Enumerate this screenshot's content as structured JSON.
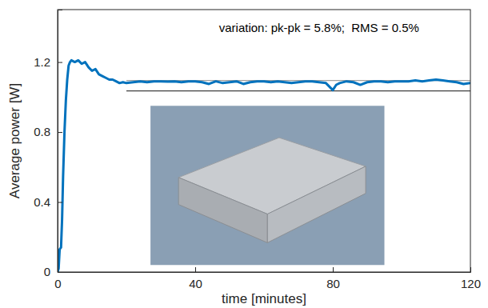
{
  "chart_data": {
    "type": "line",
    "x_label": "time [minutes]",
    "y_label": "Average power [W]",
    "annotation": "variation: pk-pk = 5.8%;  RMS = 0.5%",
    "xlim": [
      0,
      120
    ],
    "xticks": [
      0,
      40,
      80,
      120
    ],
    "ylim": [
      0,
      1.5
    ],
    "yticks": [
      0,
      0.4,
      0.8,
      1.2
    ],
    "grid": false,
    "series": [
      {
        "color": "#0072bd",
        "x": [
          0,
          0.3,
          0.6,
          1.0,
          1.3,
          1.6,
          2.0,
          2.4,
          2.8,
          3.2,
          3.6,
          4,
          5,
          6,
          7,
          8,
          9,
          10,
          11,
          12,
          13,
          14,
          15,
          16,
          17,
          18,
          19,
          20,
          22,
          24,
          26,
          28,
          30,
          32,
          34,
          36,
          38,
          40,
          42,
          44,
          46,
          48,
          50,
          52,
          54,
          56,
          58,
          60,
          62,
          64,
          66,
          68,
          70,
          72,
          74,
          76,
          78,
          80,
          81,
          82,
          84,
          86,
          88,
          90,
          92,
          94,
          96,
          98,
          100,
          102,
          104,
          106,
          108,
          110,
          112,
          114,
          116,
          118,
          120
        ],
        "values": [
          0,
          0.02,
          0.13,
          0.14,
          0.3,
          0.55,
          0.8,
          0.98,
          1.1,
          1.18,
          1.2,
          1.21,
          1.2,
          1.21,
          1.19,
          1.2,
          1.17,
          1.15,
          1.16,
          1.13,
          1.12,
          1.11,
          1.1,
          1.1,
          1.09,
          1.08,
          1.085,
          1.08,
          1.085,
          1.09,
          1.085,
          1.09,
          1.09,
          1.088,
          1.09,
          1.085,
          1.09,
          1.09,
          1.085,
          1.075,
          1.09,
          1.08,
          1.085,
          1.09,
          1.075,
          1.085,
          1.09,
          1.09,
          1.085,
          1.09,
          1.085,
          1.08,
          1.085,
          1.09,
          1.09,
          1.085,
          1.08,
          1.04,
          1.07,
          1.08,
          1.09,
          1.085,
          1.07,
          1.085,
          1.09,
          1.09,
          1.085,
          1.09,
          1.09,
          1.09,
          1.095,
          1.09,
          1.095,
          1.1,
          1.095,
          1.09,
          1.085,
          1.075,
          1.08
        ]
      },
      {
        "color": "#a0a0a0",
        "x": [
          20,
          120
        ],
        "values": [
          1.095,
          1.095
        ]
      },
      {
        "color": "#404040",
        "x": [
          20,
          120
        ],
        "values": [
          1.035,
          1.035
        ]
      }
    ]
  }
}
